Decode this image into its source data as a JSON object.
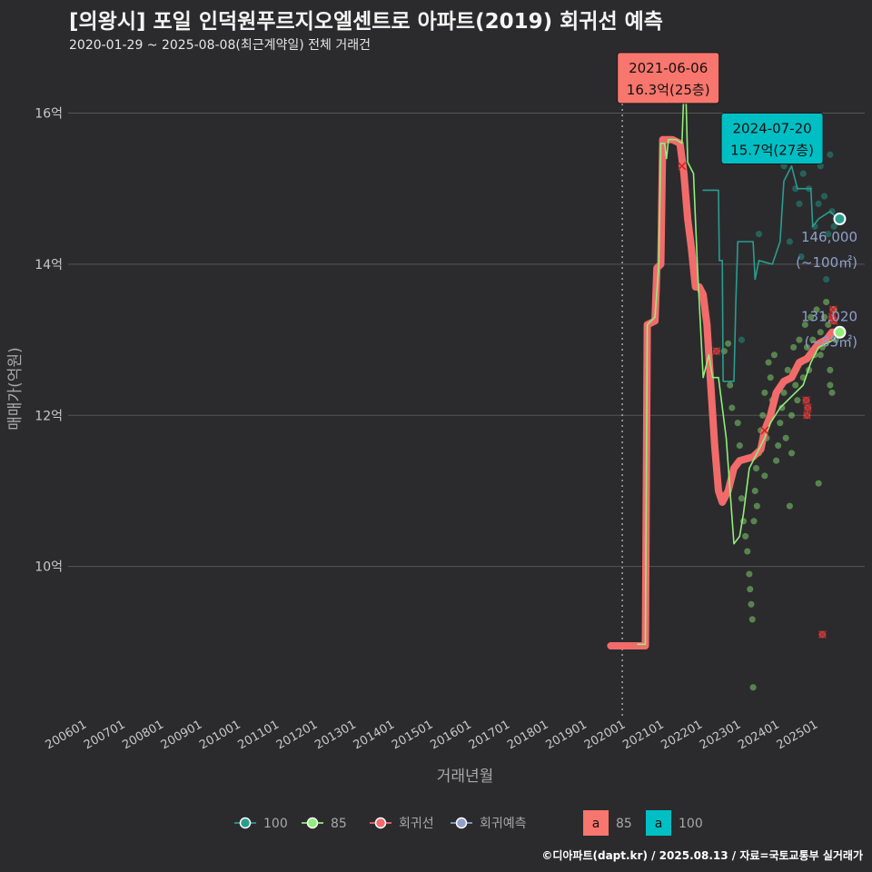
{
  "chart_data": {
    "type": "line",
    "title": "[의왕시] 포일 인덕원푸르지오엘센트로 아파트(2019) 회귀선 예측",
    "subtitle": "2020-01-29 ~ 2025-08-08(최근계약일) 전체 거래건",
    "xlabel": "거래년월",
    "ylabel": "매매가(억원)",
    "caption": "©디아파트(dapt.kr) / 2025.08.13 / 자료=국토교통부 실거래가",
    "x_range": [
      2005.5,
      2026.2
    ],
    "y_range": [
      8.0,
      16.8
    ],
    "x_ticks": [
      {
        "label": "200601",
        "x": 2006.0
      },
      {
        "label": "200701",
        "x": 2007.0
      },
      {
        "label": "200801",
        "x": 2008.0
      },
      {
        "label": "200901",
        "x": 2009.0
      },
      {
        "label": "201001",
        "x": 2010.0
      },
      {
        "label": "201101",
        "x": 2011.0
      },
      {
        "label": "201201",
        "x": 2012.0
      },
      {
        "label": "201301",
        "x": 2013.0
      },
      {
        "label": "201401",
        "x": 2014.0
      },
      {
        "label": "201501",
        "x": 2015.0
      },
      {
        "label": "201601",
        "x": 2016.0
      },
      {
        "label": "201701",
        "x": 2017.0
      },
      {
        "label": "201801",
        "x": 2018.0
      },
      {
        "label": "201901",
        "x": 2019.0
      },
      {
        "label": "202001",
        "x": 2020.0
      },
      {
        "label": "202101",
        "x": 2021.0
      },
      {
        "label": "202201",
        "x": 2022.0
      },
      {
        "label": "202301",
        "x": 2023.0
      },
      {
        "label": "202401",
        "x": 2024.0
      },
      {
        "label": "202501",
        "x": 2025.0
      }
    ],
    "y_ticks": [
      {
        "label": "10억",
        "y": 10
      },
      {
        "label": "12억",
        "y": 12
      },
      {
        "label": "14억",
        "y": 14
      },
      {
        "label": "16억",
        "y": 16
      }
    ],
    "vline_x": 2019.9,
    "colors": {
      "s100": "#2a9d8f",
      "s85": "#90ee7a",
      "regression": "#f26b6b",
      "forecast": "#8fa0cc",
      "label85": "#f8766d",
      "label100": "#00bfc4"
    },
    "series": [
      {
        "name": "100",
        "kind": "line",
        "color": "#2a9d8f",
        "points": [
          [
            2022.0,
            14.98
          ],
          [
            2022.4,
            14.98
          ],
          [
            2022.42,
            14.05
          ],
          [
            2022.5,
            14.05
          ],
          [
            2022.52,
            12.45
          ],
          [
            2022.8,
            12.45
          ],
          [
            2022.85,
            13.5
          ],
          [
            2022.9,
            14.3
          ],
          [
            2023.3,
            14.3
          ],
          [
            2023.35,
            13.8
          ],
          [
            2023.45,
            14.05
          ],
          [
            2023.8,
            14.0
          ],
          [
            2024.0,
            14.3
          ],
          [
            2024.1,
            15.1
          ],
          [
            2024.3,
            15.3
          ],
          [
            2024.45,
            15.0
          ],
          [
            2024.8,
            15.0
          ],
          [
            2024.85,
            14.5
          ],
          [
            2025.0,
            14.6
          ],
          [
            2025.3,
            14.7
          ],
          [
            2025.5,
            14.6
          ]
        ]
      },
      {
        "name": "85",
        "kind": "line",
        "color": "#90ee7a",
        "points": [
          [
            2020.3,
            8.97
          ],
          [
            2020.5,
            8.97
          ],
          [
            2020.55,
            13.2
          ],
          [
            2020.75,
            13.3
          ],
          [
            2020.85,
            14.0
          ],
          [
            2020.9,
            15.6
          ],
          [
            2021.0,
            15.6
          ],
          [
            2021.05,
            15.4
          ],
          [
            2021.1,
            15.65
          ],
          [
            2021.3,
            15.65
          ],
          [
            2021.45,
            15.6
          ],
          [
            2021.5,
            16.3
          ],
          [
            2021.55,
            16.3
          ],
          [
            2021.6,
            15.35
          ],
          [
            2021.75,
            15.2
          ],
          [
            2021.85,
            14.0
          ],
          [
            2022.0,
            12.5
          ],
          [
            2022.15,
            12.8
          ],
          [
            2022.25,
            12.5
          ],
          [
            2022.4,
            12.5
          ],
          [
            2022.6,
            11.7
          ],
          [
            2022.8,
            10.3
          ],
          [
            2022.95,
            10.4
          ],
          [
            2023.05,
            10.7
          ],
          [
            2023.2,
            11.3
          ],
          [
            2023.4,
            11.5
          ],
          [
            2023.6,
            11.7
          ],
          [
            2023.75,
            11.9
          ],
          [
            2024.0,
            12.1
          ],
          [
            2024.2,
            12.2
          ],
          [
            2024.4,
            12.3
          ],
          [
            2024.6,
            12.4
          ],
          [
            2024.8,
            12.7
          ],
          [
            2025.0,
            12.9
          ],
          [
            2025.2,
            12.95
          ],
          [
            2025.4,
            13.0
          ],
          [
            2025.5,
            13.1
          ]
        ]
      },
      {
        "name": "회귀선",
        "kind": "thick",
        "color": "#f26b6b",
        "points": [
          [
            2019.6,
            8.95
          ],
          [
            2020.5,
            8.95
          ],
          [
            2020.55,
            13.2
          ],
          [
            2020.75,
            13.25
          ],
          [
            2020.8,
            13.95
          ],
          [
            2020.9,
            14.0
          ],
          [
            2020.95,
            15.65
          ],
          [
            2021.2,
            15.65
          ],
          [
            2021.4,
            15.6
          ],
          [
            2021.5,
            15.2
          ],
          [
            2021.6,
            14.6
          ],
          [
            2021.7,
            14.2
          ],
          [
            2021.8,
            13.7
          ],
          [
            2021.9,
            13.7
          ],
          [
            2022.0,
            13.6
          ],
          [
            2022.1,
            13.2
          ],
          [
            2022.2,
            12.4
          ],
          [
            2022.3,
            11.6
          ],
          [
            2022.4,
            11.0
          ],
          [
            2022.5,
            10.85
          ],
          [
            2022.65,
            11.0
          ],
          [
            2022.8,
            11.3
          ],
          [
            2022.95,
            11.4
          ],
          [
            2023.3,
            11.45
          ],
          [
            2023.5,
            11.55
          ],
          [
            2023.6,
            11.8
          ],
          [
            2023.75,
            12.0
          ],
          [
            2023.9,
            12.3
          ],
          [
            2024.1,
            12.45
          ],
          [
            2024.3,
            12.5
          ],
          [
            2024.5,
            12.7
          ],
          [
            2024.7,
            12.75
          ],
          [
            2024.85,
            12.85
          ],
          [
            2025.0,
            12.95
          ],
          [
            2025.2,
            13.0
          ],
          [
            2025.35,
            13.1
          ],
          [
            2025.5,
            13.1
          ]
        ]
      }
    ],
    "scatter_85": [
      [
        2022.55,
        12.85
      ],
      [
        2022.65,
        12.95
      ],
      [
        2022.7,
        12.4
      ],
      [
        2022.75,
        12.1
      ],
      [
        2022.9,
        11.9
      ],
      [
        2022.95,
        11.6
      ],
      [
        2023.0,
        10.9
      ],
      [
        2023.05,
        10.6
      ],
      [
        2023.1,
        10.4
      ],
      [
        2023.15,
        10.2
      ],
      [
        2023.2,
        9.9
      ],
      [
        2023.22,
        9.7
      ],
      [
        2023.25,
        9.5
      ],
      [
        2023.28,
        9.3
      ],
      [
        2023.3,
        8.4
      ],
      [
        2023.32,
        10.6
      ],
      [
        2023.35,
        11.0
      ],
      [
        2023.38,
        11.3
      ],
      [
        2023.4,
        10.8
      ],
      [
        2023.45,
        11.5
      ],
      [
        2023.5,
        11.8
      ],
      [
        2023.55,
        12.0
      ],
      [
        2023.6,
        12.3
      ],
      [
        2023.65,
        11.7
      ],
      [
        2023.7,
        12.7
      ],
      [
        2023.75,
        12.5
      ],
      [
        2023.8,
        12.2
      ],
      [
        2023.85,
        12.8
      ],
      [
        2023.9,
        11.4
      ],
      [
        2023.95,
        11.6
      ],
      [
        2024.0,
        11.9
      ],
      [
        2024.05,
        12.1
      ],
      [
        2024.1,
        12.3
      ],
      [
        2024.15,
        11.7
      ],
      [
        2024.2,
        12.6
      ],
      [
        2024.25,
        10.8
      ],
      [
        2024.3,
        12.0
      ],
      [
        2024.35,
        12.9
      ],
      [
        2024.4,
        12.4
      ],
      [
        2024.45,
        12.2
      ],
      [
        2024.5,
        13.0
      ],
      [
        2024.55,
        12.7
      ],
      [
        2024.6,
        12.5
      ],
      [
        2024.65,
        13.2
      ],
      [
        2024.7,
        12.9
      ],
      [
        2024.75,
        12.6
      ],
      [
        2024.8,
        13.3
      ],
      [
        2024.85,
        13.0
      ],
      [
        2024.9,
        12.8
      ],
      [
        2024.95,
        13.4
      ],
      [
        2025.0,
        11.1
      ],
      [
        2025.05,
        13.1
      ],
      [
        2025.1,
        12.9
      ],
      [
        2025.15,
        13.3
      ],
      [
        2025.2,
        13.5
      ],
      [
        2025.25,
        13.2
      ],
      [
        2025.3,
        12.6
      ],
      [
        2025.35,
        12.3
      ],
      [
        2025.4,
        13.4
      ],
      [
        2025.45,
        13.0
      ],
      [
        2025.05,
        12.8
      ],
      [
        2024.3,
        11.5
      ],
      [
        2023.6,
        11.2
      ],
      [
        2025.3,
        12.4
      ]
    ],
    "scatter_100": [
      [
        2024.1,
        15.3
      ],
      [
        2024.2,
        15.5
      ],
      [
        2024.3,
        15.7
      ],
      [
        2024.35,
        15.6
      ],
      [
        2024.4,
        15.0
      ],
      [
        2024.5,
        14.8
      ],
      [
        2024.6,
        15.2
      ],
      [
        2024.75,
        15.0
      ],
      [
        2024.9,
        14.5
      ],
      [
        2025.0,
        14.8
      ],
      [
        2025.05,
        15.3
      ],
      [
        2025.15,
        14.9
      ],
      [
        2025.25,
        14.4
      ],
      [
        2025.3,
        15.45
      ],
      [
        2025.35,
        14.7
      ],
      [
        2025.4,
        14.5
      ],
      [
        2024.55,
        14.1
      ],
      [
        2024.25,
        14.3
      ],
      [
        2025.2,
        13.8
      ],
      [
        2023.45,
        14.4
      ],
      [
        2023.0,
        13.0
      ]
    ],
    "x_marks": [
      [
        2021.45,
        15.3
      ],
      [
        2022.35,
        12.85
      ],
      [
        2023.6,
        11.8
      ],
      [
        2024.7,
        12.0
      ],
      [
        2024.72,
        12.1
      ],
      [
        2025.1,
        9.1
      ],
      [
        2025.35,
        13.3
      ],
      [
        2025.38,
        13.4
      ],
      [
        2025.4,
        13.25
      ],
      [
        2024.68,
        12.2
      ]
    ],
    "endpoints": [
      {
        "name": "100",
        "x": 2025.55,
        "y": 14.6,
        "color": "#2a9d8f"
      },
      {
        "name": "85",
        "x": 2025.55,
        "y": 13.1,
        "color": "#90ee7a"
      }
    ],
    "annotations": [
      {
        "date": "2021-06-06",
        "value": "16.3억(25층)",
        "color": "#f8766d",
        "anchor_x": 2021.0,
        "anchor_y": 16.2
      },
      {
        "date": "2024-07-20",
        "value": "15.7억(27층)",
        "color": "#00bfc4",
        "anchor_x": 2023.7,
        "anchor_y": 15.4
      }
    ],
    "end_labels": [
      {
        "price": "146,000",
        "area": "(~100㎡)",
        "y": 14.3
      },
      {
        "price": "131,020",
        "area": "(~85㎡)",
        "y": 13.25
      }
    ],
    "legend": [
      {
        "label": "100",
        "color": "#2a9d8f",
        "kind": "line"
      },
      {
        "label": "85",
        "color": "#90ee7a",
        "kind": "line"
      },
      {
        "label": "회귀선",
        "color": "#f26b6b",
        "kind": "line"
      },
      {
        "label": "회귀예측",
        "color": "#8fa0cc",
        "kind": "line"
      },
      {
        "label": "85",
        "color": "#f8766d",
        "kind": "box",
        "box_text": "a"
      },
      {
        "label": "100",
        "color": "#00bfc4",
        "kind": "box",
        "box_text": "a"
      }
    ]
  }
}
